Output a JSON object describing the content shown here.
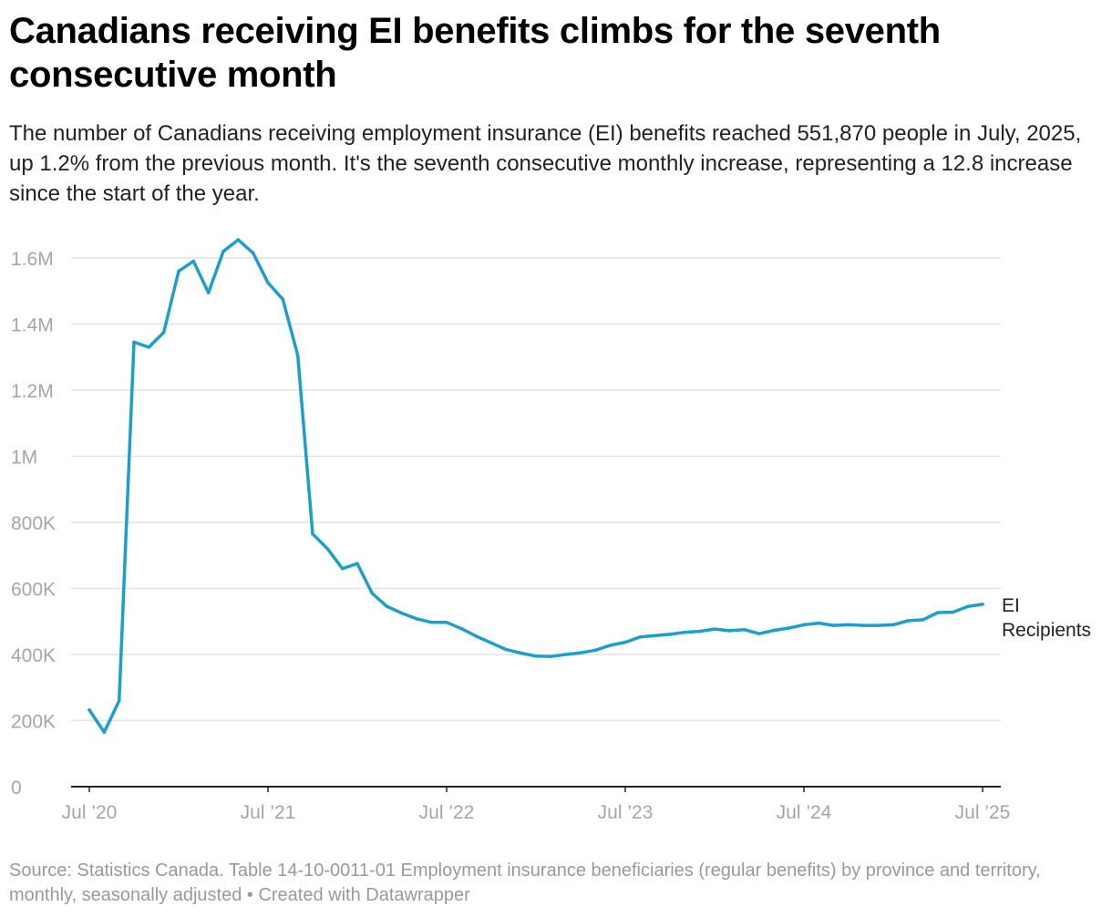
{
  "title": "Canadians receiving EI benefits climbs for the seventh consecutive month",
  "subtitle": "The number of Canadians receiving employment insurance (EI) benefits reached 551,870 people in July, 2025, up 1.2% from the previous month. It's the seventh consecutive monthly increase, representing a 12.8 increase since the start of the year.",
  "source": "Source: Statistics Canada. Table 14-10-0011-01 Employment insurance beneficiaries (regular benefits) by province and territory, monthly, seasonally adjusted • Created with Datawrapper",
  "colors": {
    "line": "#1e9fcb",
    "grid": "#e3e3e3",
    "axis": "#222222",
    "tick_text": "#a6a6a6"
  },
  "chart_data": {
    "type": "line",
    "title": "Canadians receiving EI benefits climbs for the seventh consecutive month",
    "xlabel": "",
    "ylabel": "",
    "ylim": [
      0,
      1600000
    ],
    "grid": true,
    "x_start": "2020-07",
    "x_end": "2025-07",
    "x_ticks": [
      {
        "month_index": 0,
        "label": "Jul ’20"
      },
      {
        "month_index": 12,
        "label": "Jul ’21"
      },
      {
        "month_index": 24,
        "label": "Jul ’22"
      },
      {
        "month_index": 36,
        "label": "Jul ’23"
      },
      {
        "month_index": 48,
        "label": "Jul ’24"
      },
      {
        "month_index": 60,
        "label": "Jul ’25"
      }
    ],
    "y_ticks": [
      {
        "value": 0,
        "label": "0"
      },
      {
        "value": 200000,
        "label": "200K"
      },
      {
        "value": 400000,
        "label": "400K"
      },
      {
        "value": 600000,
        "label": "600K"
      },
      {
        "value": 800000,
        "label": "800K"
      },
      {
        "value": 1000000,
        "label": "1M"
      },
      {
        "value": 1200000,
        "label": "1.2M"
      },
      {
        "value": 1400000,
        "label": "1.4M"
      },
      {
        "value": 1600000,
        "label": "1.6M"
      }
    ],
    "series": [
      {
        "name": "EI Recipients",
        "label_lines": [
          "EI",
          "Recipients"
        ],
        "values": [
          232000,
          165000,
          260000,
          1345000,
          1330000,
          1375000,
          1560000,
          1590000,
          1495000,
          1620000,
          1655000,
          1615000,
          1525000,
          1475000,
          1305000,
          765000,
          720000,
          660000,
          675000,
          585000,
          545000,
          525000,
          508000,
          497000,
          497000,
          478000,
          455000,
          435000,
          415000,
          404000,
          395000,
          394000,
          400000,
          405000,
          413000,
          428000,
          437000,
          453000,
          457000,
          461000,
          467000,
          470000,
          477000,
          472000,
          475000,
          463000,
          473000,
          480000,
          490000,
          495000,
          488000,
          490000,
          488000,
          488000,
          490000,
          502000,
          505000,
          527000,
          528000,
          545000,
          551870
        ]
      }
    ]
  }
}
